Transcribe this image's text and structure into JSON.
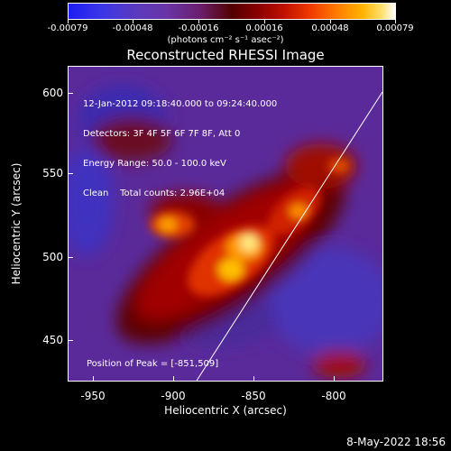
{
  "colorbar": {
    "ticks": [
      "-0.00079",
      "-0.00048",
      "-0.00016",
      "0.00016",
      "0.00048",
      "0.00079"
    ],
    "units_label": "(photons cm⁻² s⁻¹ asec⁻²)"
  },
  "title": "Reconstructed RHESSI Image",
  "info": {
    "time_range": "12-Jan-2012 09:18:40.000 to 09:24:40.000",
    "detectors": "Detectors: 3F 4F 5F 6F 7F 8F, Att 0",
    "energy": "Energy Range: 50.0 - 100.0 keV",
    "clean": "Clean    Total counts: 2.96E+04"
  },
  "peak_label": "Position of Peak = [-851,509]",
  "x_axis": {
    "label": "Heliocentric X (arcsec)",
    "ticks": [
      "-950",
      "-900",
      "-850",
      "-800"
    ]
  },
  "y_axis": {
    "label": "Heliocentric Y (arcsec)",
    "ticks": [
      "600",
      "550",
      "500",
      "450"
    ]
  },
  "timestamp": "8-May-2022 18:56",
  "colors": {
    "limb_line": "#ffffff"
  }
}
